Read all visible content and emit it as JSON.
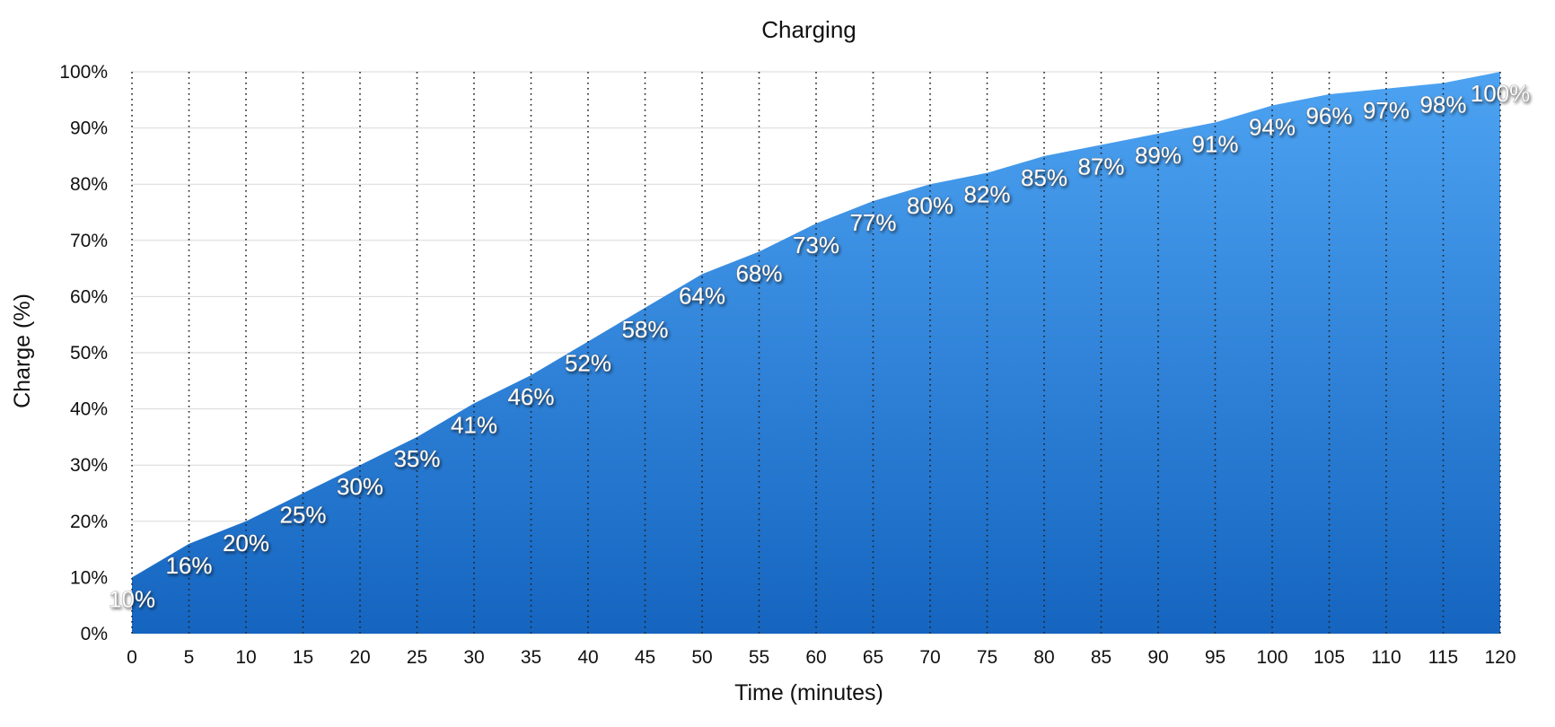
{
  "chart_data": {
    "type": "area",
    "title": "Charging",
    "xlabel": "Time (minutes)",
    "ylabel": "Charge (%)",
    "x": [
      0,
      5,
      10,
      15,
      20,
      25,
      30,
      35,
      40,
      45,
      50,
      55,
      60,
      65,
      70,
      75,
      80,
      85,
      90,
      95,
      100,
      105,
      110,
      115,
      120
    ],
    "values": [
      10,
      16,
      20,
      25,
      30,
      35,
      41,
      46,
      52,
      58,
      64,
      68,
      73,
      77,
      80,
      82,
      85,
      87,
      89,
      91,
      94,
      96,
      97,
      98,
      100
    ],
    "data_labels": [
      "10%",
      "16%",
      "20%",
      "25%",
      "30%",
      "35%",
      "41%",
      "46%",
      "52%",
      "58%",
      "64%",
      "68%",
      "73%",
      "77%",
      "80%",
      "82%",
      "85%",
      "87%",
      "89%",
      "91%",
      "94%",
      "96%",
      "97%",
      "98%",
      "100%"
    ],
    "x_ticks": [
      "0",
      "5",
      "10",
      "15",
      "20",
      "25",
      "30",
      "35",
      "40",
      "45",
      "50",
      "55",
      "60",
      "65",
      "70",
      "75",
      "80",
      "85",
      "90",
      "95",
      "100",
      "105",
      "110",
      "115",
      "120"
    ],
    "y_ticks": [
      "0%",
      "10%",
      "20%",
      "30%",
      "40%",
      "50%",
      "60%",
      "70%",
      "80%",
      "90%",
      "100%"
    ],
    "xlim": [
      0,
      120
    ],
    "ylim": [
      0,
      100
    ],
    "grid": true,
    "legend": "none",
    "colors": {
      "area_top": "#4da3f2",
      "area_bottom": "#1565c0",
      "grid_horizontal": "#d9d9d9",
      "grid_vertical": "#222222"
    }
  }
}
